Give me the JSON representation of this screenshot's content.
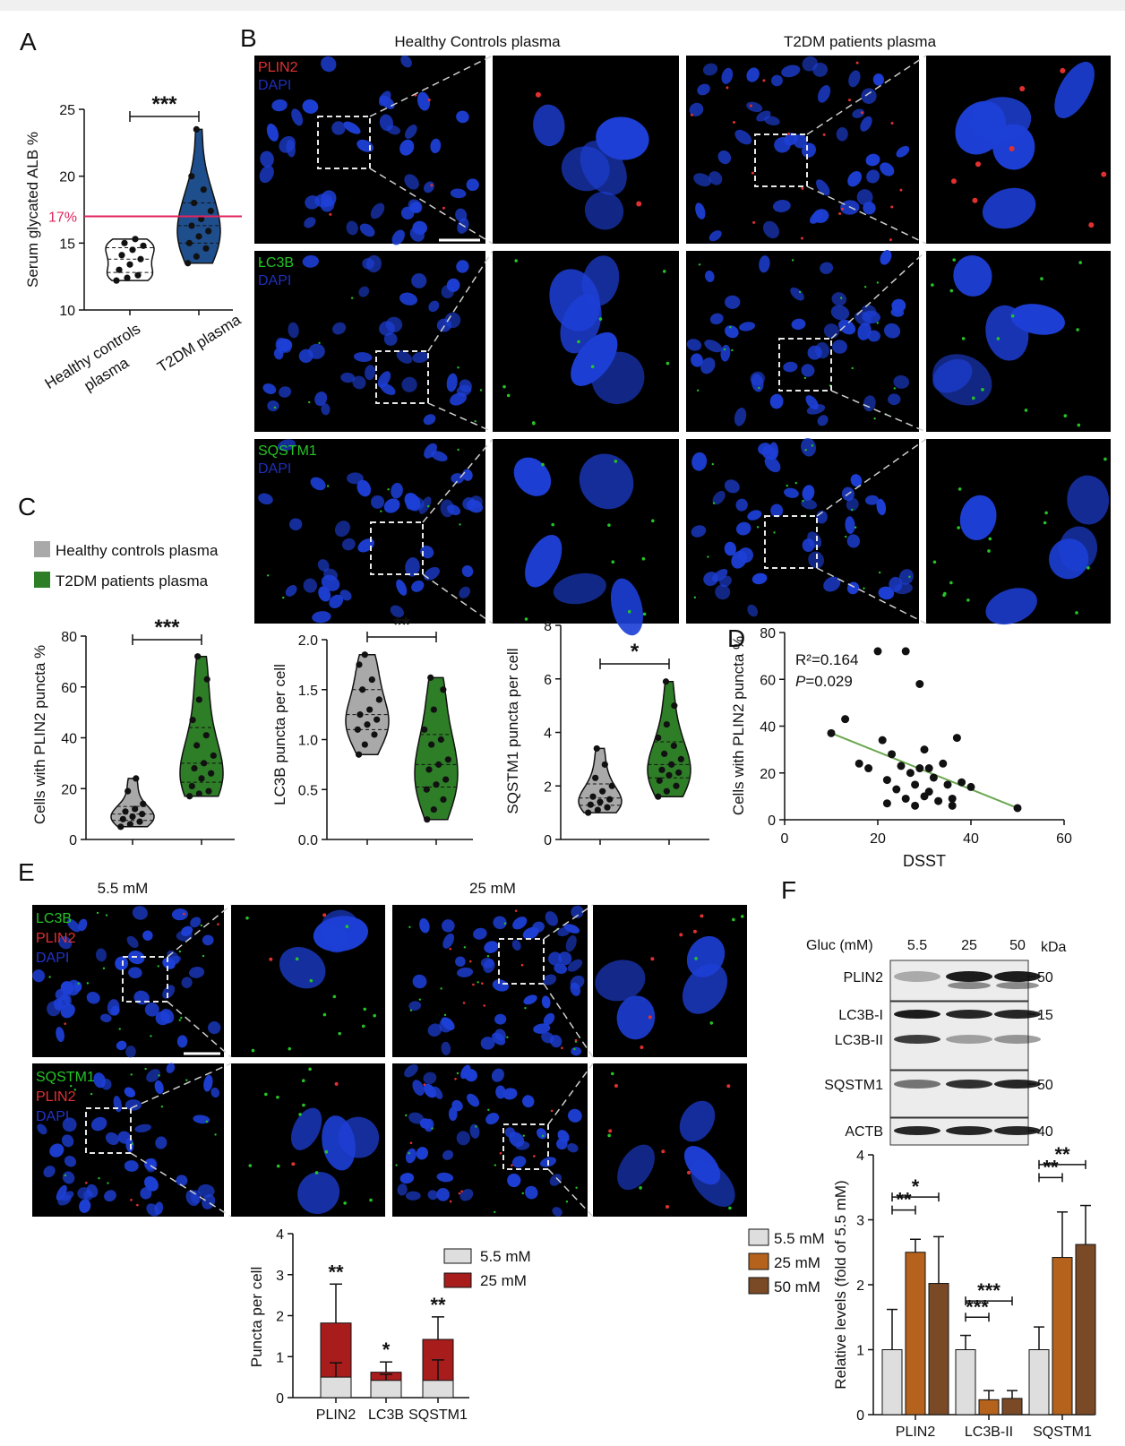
{
  "panel_letters": [
    "A",
    "B",
    "C",
    "D",
    "E",
    "F"
  ],
  "colors": {
    "healthy_gray": "#a9a9a9",
    "t2dm_blue": "#1f4e8c",
    "t2dm_green": "#2e7d27",
    "threshold_red": "#e0245e",
    "bar_light": "#dedede",
    "bar_25": "#b5621c",
    "bar_50": "#7a4a26",
    "bar_red": "#a81c1c",
    "regression_green": "#6aa84f",
    "micrograph_bg": "#000000",
    "nucleus_blue": "#1d3fd6"
  },
  "panel_b": {
    "headers": [
      "Healthy Controls plasma",
      "T2DM patients plasma"
    ],
    "rows": [
      {
        "stain": "PLIN2",
        "stain_color": "#e23030",
        "counterstain": "DAPI"
      },
      {
        "stain": "LC3B",
        "stain_color": "#25c425",
        "counterstain": "DAPI"
      },
      {
        "stain": "SQSTM1",
        "stain_color": "#25c425",
        "counterstain": "DAPI"
      }
    ]
  },
  "panel_c": {
    "legend": [
      {
        "label": "Healthy controls plasma",
        "color": "#a9a9a9"
      },
      {
        "label": "T2DM patients plasma",
        "color": "#2e7d27"
      }
    ]
  },
  "panel_e": {
    "headers": [
      "5.5 mM",
      "25 mM"
    ],
    "rows": [
      {
        "stains": [
          {
            "text": "LC3B",
            "color": "#25c425"
          },
          {
            "text": "PLIN2",
            "color": "#e23030"
          },
          {
            "text": "DAPI",
            "color": "#2233cc"
          }
        ]
      },
      {
        "stains": [
          {
            "text": "SQSTM1",
            "color": "#25c425"
          },
          {
            "text": "PLIN2",
            "color": "#e23030"
          },
          {
            "text": "DAPI",
            "color": "#2233cc"
          }
        ]
      }
    ]
  },
  "panel_f_blot": {
    "condition_label": "Gluc (mM)",
    "lanes": [
      "5.5",
      "25",
      "50"
    ],
    "unit": "kDa",
    "bands": [
      {
        "name": "PLIN2",
        "kda": "50"
      },
      {
        "name": "LC3B-I",
        "kda": "15"
      },
      {
        "name": "LC3B-II",
        "kda": ""
      },
      {
        "name": "SQSTM1",
        "kda": "50"
      },
      {
        "name": "ACTB",
        "kda": "40"
      }
    ]
  },
  "chart_data": [
    {
      "panel": "A",
      "type": "violin",
      "ylabel": "Serum glycated ALB %",
      "ylim": [
        10,
        25
      ],
      "yticks": [
        10,
        15,
        20,
        25
      ],
      "categories": [
        "Healthy controls plasma",
        "T2DM plasma"
      ],
      "category_lines": [
        [
          "Healthy controls",
          "plasma"
        ],
        [
          "T2DM plasma"
        ]
      ],
      "threshold": {
        "value": 17,
        "label": "17%"
      },
      "significance": "***",
      "series": [
        {
          "name": "Healthy controls plasma",
          "color": "#ffffff",
          "values": [
            12.2,
            12.4,
            12.6,
            13.0,
            13.4,
            13.8,
            14.1,
            14.5,
            14.8,
            15.0,
            15.3
          ]
        },
        {
          "name": "T2DM plasma",
          "color": "#1f4e8c",
          "values": [
            13.5,
            14.0,
            14.6,
            15.0,
            15.5,
            15.9,
            16.3,
            16.8,
            17.4,
            18.0,
            19.0,
            20.0,
            23.5
          ]
        }
      ]
    },
    {
      "panel": "C1",
      "type": "violin",
      "ylabel": "Cells with PLIN2 puncta %",
      "ylim": [
        0,
        80
      ],
      "yticks": [
        0,
        20,
        40,
        60,
        80
      ],
      "significance": "***",
      "series": [
        {
          "name": "Healthy controls plasma",
          "color": "#a9a9a9",
          "values": [
            5,
            6,
            7,
            8,
            9,
            10,
            11,
            12,
            14,
            19,
            24
          ]
        },
        {
          "name": "T2DM patients plasma",
          "color": "#2e7d27",
          "values": [
            17,
            18,
            19,
            21,
            24,
            26,
            28,
            30,
            33,
            37,
            41,
            47,
            55,
            63,
            72
          ]
        }
      ]
    },
    {
      "panel": "C2",
      "type": "violin",
      "ylabel": "LC3B puncta per cell",
      "ylim": [
        0,
        2.0
      ],
      "yticks": [
        "0.0",
        "0.5",
        "1.0",
        "1.5",
        "2.0"
      ],
      "significance": "**",
      "series": [
        {
          "name": "Healthy controls plasma",
          "color": "#a9a9a9",
          "values": [
            0.85,
            0.95,
            1.05,
            1.1,
            1.15,
            1.2,
            1.25,
            1.3,
            1.4,
            1.5,
            1.6,
            1.75,
            1.85
          ]
        },
        {
          "name": "T2DM patients plasma",
          "color": "#2e7d27",
          "values": [
            0.2,
            0.3,
            0.4,
            0.5,
            0.55,
            0.6,
            0.7,
            0.75,
            0.8,
            0.95,
            1.0,
            1.1,
            1.3,
            1.5,
            1.62
          ]
        }
      ]
    },
    {
      "panel": "C3",
      "type": "violin",
      "ylabel": "SQSTM1 puncta per cell",
      "ylim": [
        0,
        8
      ],
      "yticks": [
        0,
        2,
        4,
        6,
        8
      ],
      "significance": "*",
      "series": [
        {
          "name": "Healthy controls plasma",
          "color": "#a9a9a9",
          "values": [
            1.0,
            1.1,
            1.2,
            1.3,
            1.4,
            1.5,
            1.6,
            1.8,
            2.0,
            2.3,
            2.8,
            3.4
          ]
        },
        {
          "name": "T2DM patients plasma",
          "color": "#2e7d27",
          "values": [
            1.6,
            1.8,
            2.0,
            2.2,
            2.4,
            2.5,
            2.6,
            2.8,
            3.0,
            3.2,
            3.5,
            3.8,
            4.3,
            5.0,
            5.9
          ]
        }
      ]
    },
    {
      "panel": "D",
      "type": "scatter",
      "xlabel": "DSST",
      "ylabel": "Cells with PLIN2 puncta %",
      "xlim": [
        0,
        60
      ],
      "ylim": [
        0,
        80
      ],
      "xticks": [
        0,
        20,
        40,
        60
      ],
      "yticks": [
        0,
        20,
        40,
        60,
        80
      ],
      "annotation_r2": "R²=0.164",
      "annotation_p_italic": "P",
      "annotation_p_value": "=0.029",
      "regression": {
        "x": [
          10,
          50
        ],
        "y": [
          37,
          5
        ]
      },
      "points": [
        [
          10,
          37
        ],
        [
          13,
          43
        ],
        [
          16,
          24
        ],
        [
          18,
          22
        ],
        [
          20,
          72
        ],
        [
          21,
          34
        ],
        [
          22,
          17
        ],
        [
          22,
          7
        ],
        [
          23,
          28
        ],
        [
          24,
          13
        ],
        [
          25,
          23
        ],
        [
          26,
          72
        ],
        [
          26,
          9
        ],
        [
          27,
          20
        ],
        [
          28,
          6
        ],
        [
          28,
          15
        ],
        [
          29,
          22
        ],
        [
          29,
          58
        ],
        [
          30,
          30
        ],
        [
          30,
          10
        ],
        [
          31,
          12
        ],
        [
          31,
          22
        ],
        [
          32,
          18
        ],
        [
          33,
          8
        ],
        [
          34,
          24
        ],
        [
          35,
          15
        ],
        [
          36,
          9
        ],
        [
          36,
          6
        ],
        [
          37,
          35
        ],
        [
          38,
          16
        ],
        [
          40,
          14
        ],
        [
          50,
          5
        ]
      ]
    },
    {
      "panel": "E",
      "type": "bar",
      "stacked": true,
      "ylabel": "Puncta per cell",
      "ylim": [
        0,
        4
      ],
      "yticks": [
        0,
        1,
        2,
        3,
        4
      ],
      "categories": [
        "PLIN2",
        "LC3B",
        "SQSTM1"
      ],
      "significance": [
        "**",
        "*",
        "**"
      ],
      "series": [
        {
          "name": "5.5 mM",
          "color": "#dedede",
          "values": [
            0.5,
            0.42,
            0.42
          ],
          "errors": [
            0.35,
            0.15,
            0.5
          ]
        },
        {
          "name": "25 mM",
          "color": "#a81c1c",
          "values": [
            1.82,
            0.62,
            1.42
          ],
          "errors": [
            0.95,
            0.25,
            0.55
          ]
        }
      ]
    },
    {
      "panel": "F",
      "type": "bar",
      "ylabel": "Relative levels (fold of 5.5 mM)",
      "ylim": [
        0,
        4
      ],
      "yticks": [
        0,
        1,
        2,
        3,
        4
      ],
      "categories": [
        "PLIN2",
        "LC3B-II",
        "SQSTM1"
      ],
      "series": [
        {
          "name": "5.5 mM",
          "color": "#dedede",
          "values": [
            1.0,
            1.0,
            1.0
          ],
          "errors": [
            0.62,
            0.22,
            0.35
          ]
        },
        {
          "name": "25 mM",
          "color": "#b5621c",
          "values": [
            2.5,
            0.23,
            2.42
          ],
          "errors": [
            0.2,
            0.14,
            0.7
          ]
        },
        {
          "name": "50 mM",
          "color": "#7a4a26",
          "values": [
            2.02,
            0.25,
            2.62
          ],
          "errors": [
            0.72,
            0.12,
            0.6
          ]
        }
      ],
      "significance": [
        {
          "category": 0,
          "from": 0,
          "to": 1,
          "text": "**",
          "level": 3.15
        },
        {
          "category": 0,
          "from": 0,
          "to": 2,
          "text": "*",
          "level": 3.35
        },
        {
          "category": 1,
          "from": 0,
          "to": 1,
          "text": "***",
          "level": 1.5
        },
        {
          "category": 1,
          "from": 0,
          "to": 2,
          "text": "***",
          "level": 1.75
        },
        {
          "category": 2,
          "from": 0,
          "to": 1,
          "text": "**",
          "level": 3.65
        },
        {
          "category": 2,
          "from": 0,
          "to": 2,
          "text": "**",
          "level": 3.85
        }
      ]
    }
  ]
}
